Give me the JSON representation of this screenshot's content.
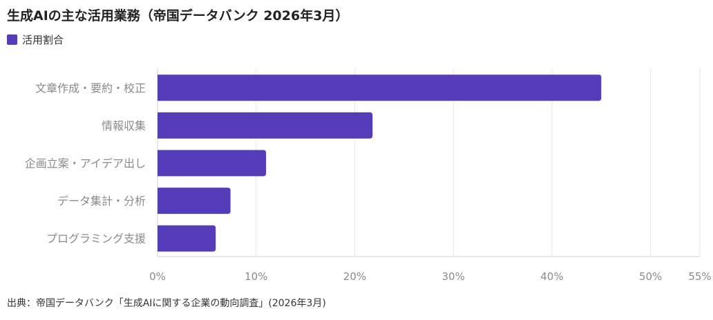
{
  "title": "生成AIの主な活用業務（帝国データバンク 2026年3月）",
  "legend": {
    "label": "活用割合",
    "color": "#553cb9"
  },
  "source": "出典：帝国データバンク「生成AIに関する企業の動向調査」(2026年3月)",
  "chart_data": {
    "type": "bar",
    "orientation": "horizontal",
    "title": "生成AIの主な活用業務（帝国データバンク 2026年3月）",
    "categories": [
      "文章作成・要約・校正",
      "情報収集",
      "企画立案・アイデア出し",
      "データ集計・分析",
      "プログラミング支援"
    ],
    "series": [
      {
        "name": "活用割合",
        "color": "#553cb9",
        "values": [
          45.0,
          21.8,
          11.0,
          7.4,
          5.9
        ]
      }
    ],
    "xlim": [
      0,
      55
    ],
    "xticks": [
      0,
      10,
      20,
      30,
      40,
      50,
      55
    ],
    "xtick_labels": [
      "0%",
      "10%",
      "20%",
      "30%",
      "40%",
      "50%",
      "55%"
    ],
    "grid": true,
    "legend_position": "top-left"
  }
}
